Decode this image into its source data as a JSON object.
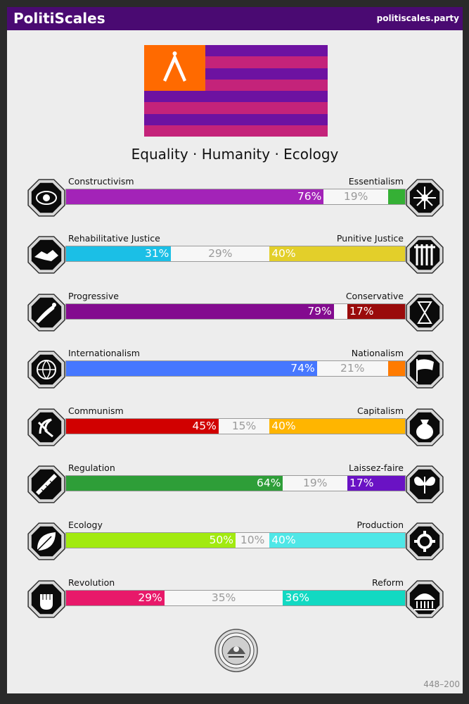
{
  "header": {
    "brand": "PolitiScales",
    "url": "politiscales.party"
  },
  "flag": {
    "stripe_colors": [
      "#6d12a1",
      "#c4237a"
    ],
    "canton_color": "#ff6a00",
    "emblem": "compass-icon"
  },
  "motto": "Equality · Humanity · Ecology",
  "axes": [
    {
      "left": "Constructivism",
      "right": "Essentialism",
      "left_pct": 76,
      "center_pct": 19,
      "right_pct": 5,
      "left_label": "76%",
      "center_label": "19%",
      "right_label": "",
      "left_color": "#a323b8",
      "right_color": "#35b035",
      "left_icon": "eye-icon",
      "right_icon": "flower-icon"
    },
    {
      "left": "Rehabilitative Justice",
      "right": "Punitive Justice",
      "left_pct": 31,
      "center_pct": 29,
      "right_pct": 40,
      "left_label": "31%",
      "center_label": "29%",
      "right_label": "40%",
      "left_color": "#1bbfe6",
      "right_color": "#e3cf2a",
      "left_icon": "handshake-icon",
      "right_icon": "prison-bars-icon"
    },
    {
      "left": "Progressive",
      "right": "Conservative",
      "left_pct": 79,
      "center_pct": 4,
      "right_pct": 17,
      "left_label": "79%",
      "center_label": "",
      "right_label": "17%",
      "left_color": "#830b8f",
      "right_color": "#9a0b0b",
      "left_icon": "comet-icon",
      "right_icon": "hourglass-icon"
    },
    {
      "left": "Internationalism",
      "right": "Nationalism",
      "left_pct": 74,
      "center_pct": 21,
      "right_pct": 5,
      "left_label": "74%",
      "center_label": "21%",
      "right_label": "",
      "left_color": "#4677ff",
      "right_color": "#ff7b00",
      "left_icon": "globe-icon",
      "right_icon": "flag-icon"
    },
    {
      "left": "Communism",
      "right": "Capitalism",
      "left_pct": 45,
      "center_pct": 15,
      "right_pct": 40,
      "left_label": "45%",
      "center_label": "15%",
      "right_label": "40%",
      "left_color": "#d10000",
      "right_color": "#ffb500",
      "left_icon": "hammer-sickle-icon",
      "right_icon": "money-bag-icon"
    },
    {
      "left": "Regulation",
      "right": "Laissez-faire",
      "left_pct": 64,
      "center_pct": 19,
      "right_pct": 17,
      "left_label": "64%",
      "center_label": "19%",
      "right_label": "17%",
      "left_color": "#2e9e38",
      "right_color": "#6a12c4",
      "left_icon": "ruler-icon",
      "right_icon": "butterfly-icon"
    },
    {
      "left": "Ecology",
      "right": "Production",
      "left_pct": 50,
      "center_pct": 10,
      "right_pct": 40,
      "left_label": "50%",
      "center_label": "10%",
      "right_label": "40%",
      "left_color": "#a2ea10",
      "right_color": "#4fe7e7",
      "left_icon": "leaf-icon",
      "right_icon": "gear-icon"
    },
    {
      "left": "Revolution",
      "right": "Reform",
      "left_pct": 29,
      "center_pct": 35,
      "right_pct": 36,
      "left_label": "29%",
      "center_label": "35%",
      "right_label": "36%",
      "left_color": "#e8196a",
      "right_color": "#12d9c2",
      "left_icon": "fist-icon",
      "right_icon": "parliament-icon"
    }
  ],
  "footer": {
    "version": "448–200",
    "seal_icon": "seal-icon"
  }
}
